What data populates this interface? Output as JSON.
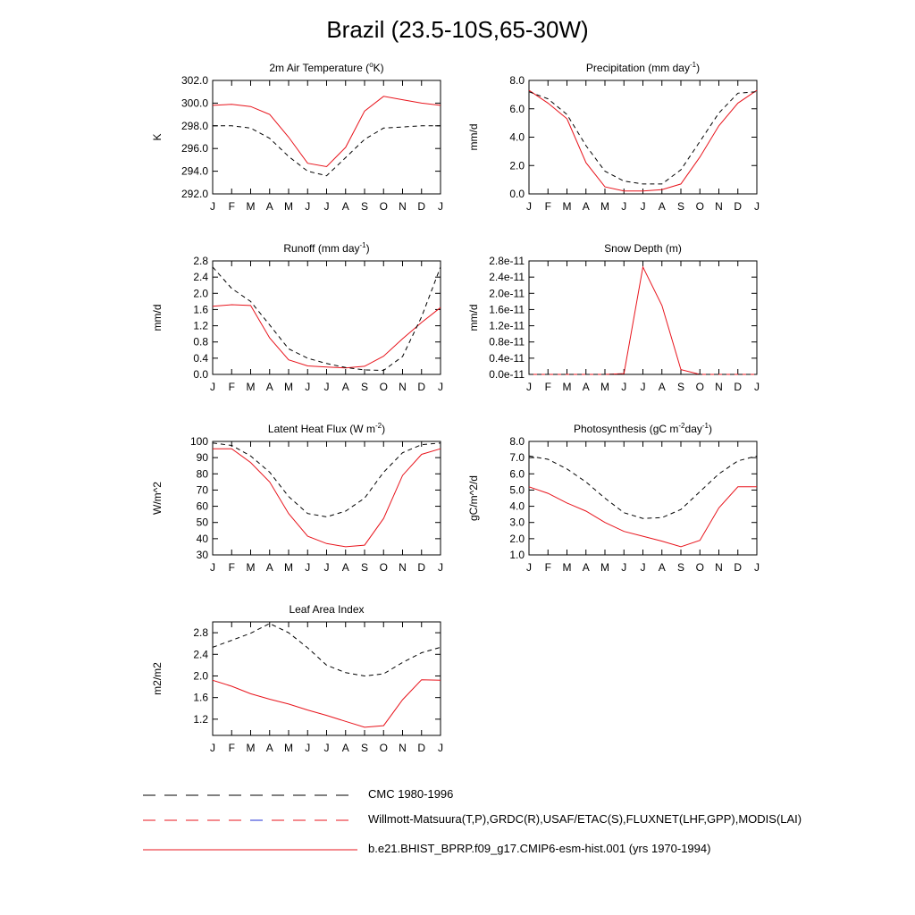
{
  "title": "Brazil (23.5-10S,65-30W)",
  "months": [
    "J",
    "F",
    "M",
    "A",
    "M",
    "J",
    "J",
    "A",
    "S",
    "O",
    "N",
    "D",
    "J"
  ],
  "colors": {
    "model": "#e8141c",
    "obs": "#000000",
    "obs_alt_accent": "#1f2fd6"
  },
  "chart_data": [
    {
      "id": "air-temp",
      "type": "line",
      "title_parts": [
        "2m Air Temperature (",
        "o",
        "K)"
      ],
      "ylabel": "K",
      "ylim": [
        292.0,
        302.0
      ],
      "yticks": [
        292.0,
        294.0,
        296.0,
        298.0,
        300.0,
        302.0
      ],
      "tick_labels": [
        "292.0",
        "294.0",
        "296.0",
        "298.0",
        "300.0",
        "302.0"
      ],
      "series": [
        {
          "name": "model",
          "values": [
            299.8,
            299.9,
            299.7,
            299.0,
            297.0,
            294.7,
            294.4,
            296.1,
            299.3,
            300.6,
            300.3,
            300.0,
            299.8
          ]
        },
        {
          "name": "obs",
          "values": [
            298.0,
            298.0,
            297.8,
            296.9,
            295.3,
            294.0,
            293.6,
            295.2,
            296.8,
            297.8,
            297.9,
            298.0,
            298.0
          ]
        }
      ]
    },
    {
      "id": "precip",
      "type": "line",
      "title_parts": [
        "Precipitation (mm day",
        "-1",
        ")"
      ],
      "ylabel": "mm/d",
      "ylim": [
        0.0,
        8.0
      ],
      "yticks": [
        0.0,
        2.0,
        4.0,
        6.0,
        8.0
      ],
      "tick_labels": [
        "0.0",
        "2.0",
        "4.0",
        "6.0",
        "8.0"
      ],
      "series": [
        {
          "name": "model",
          "values": [
            7.3,
            6.4,
            5.3,
            2.2,
            0.5,
            0.2,
            0.2,
            0.3,
            0.7,
            2.6,
            4.8,
            6.4,
            7.3
          ]
        },
        {
          "name": "obs",
          "values": [
            7.2,
            6.7,
            5.6,
            3.4,
            1.6,
            0.9,
            0.7,
            0.7,
            1.7,
            3.7,
            5.7,
            7.1,
            7.2
          ]
        }
      ]
    },
    {
      "id": "runoff",
      "type": "line",
      "title_parts": [
        "Runoff (mm day",
        "-1",
        ")"
      ],
      "ylabel": "mm/d",
      "ylim": [
        0.0,
        2.8
      ],
      "yticks": [
        0.0,
        0.4,
        0.8,
        1.2,
        1.6,
        2.0,
        2.4,
        2.8
      ],
      "tick_labels": [
        "0.0",
        "0.4",
        "0.8",
        "1.2",
        "1.6",
        "2.0",
        "2.4",
        "2.8"
      ],
      "series": [
        {
          "name": "model",
          "values": [
            1.68,
            1.72,
            1.7,
            0.9,
            0.36,
            0.21,
            0.18,
            0.16,
            0.2,
            0.45,
            0.88,
            1.28,
            1.65
          ]
        },
        {
          "name": "obs",
          "values": [
            2.65,
            2.12,
            1.8,
            1.22,
            0.63,
            0.4,
            0.27,
            0.17,
            0.11,
            0.1,
            0.44,
            1.42,
            2.65
          ]
        }
      ]
    },
    {
      "id": "snow-depth",
      "type": "line",
      "title_parts": [
        "Snow Depth (m)"
      ],
      "ylabel": "mm/d",
      "ylim": [
        0.0,
        2.8
      ],
      "yticks": [
        0.0,
        0.4,
        0.8,
        1.2,
        1.6,
        2.0,
        2.4,
        2.8
      ],
      "tick_labels": [
        "0.0e-11",
        "0.4e-11",
        "0.8e-11",
        "1.2e-11",
        "1.6e-11",
        "2.0e-11",
        "2.4e-11",
        "2.8e-11"
      ],
      "series": [
        {
          "name": "model",
          "values": [
            0.0,
            0.0,
            0.0,
            0.0,
            0.0,
            0.02,
            2.65,
            1.7,
            0.12,
            0.0,
            0.0,
            0.0,
            0.0
          ]
        },
        {
          "name": "obs",
          "values": [
            0.0,
            0.0,
            0.0,
            0.0,
            0.0,
            0.0,
            0.0,
            0.0,
            0.0,
            0.0,
            0.0,
            0.0,
            0.0
          ]
        }
      ]
    },
    {
      "id": "latent-heat",
      "type": "line",
      "title_parts": [
        "Latent Heat Flux (W m",
        "-2",
        ")"
      ],
      "ylabel": "W/m^2",
      "ylim": [
        30,
        100
      ],
      "yticks": [
        30,
        40,
        50,
        60,
        70,
        80,
        90,
        100
      ],
      "tick_labels": [
        "30",
        "40",
        "50",
        "60",
        "70",
        "80",
        "90",
        "100"
      ],
      "series": [
        {
          "name": "model",
          "values": [
            95.5,
            95.5,
            87.0,
            75.0,
            55.5,
            41.5,
            37.0,
            35.0,
            36.0,
            52.5,
            79.0,
            92.0,
            95.5
          ]
        },
        {
          "name": "obs",
          "values": [
            99.0,
            97.5,
            91.0,
            81.0,
            66.0,
            55.5,
            53.5,
            57.0,
            65.0,
            81.0,
            93.0,
            98.0,
            99.0
          ]
        }
      ]
    },
    {
      "id": "photosynthesis",
      "type": "line",
      "title_parts": [
        "Photosynthesis (gC m",
        "-2",
        "day",
        "-1",
        ")"
      ],
      "ylabel": "gC/m^2/d",
      "ylim": [
        1.0,
        8.0
      ],
      "yticks": [
        1.0,
        2.0,
        3.0,
        4.0,
        5.0,
        6.0,
        7.0,
        8.0
      ],
      "tick_labels": [
        "1.0",
        "2.0",
        "3.0",
        "4.0",
        "5.0",
        "6.0",
        "7.0",
        "8.0"
      ],
      "series": [
        {
          "name": "model",
          "values": [
            5.2,
            4.8,
            4.2,
            3.7,
            3.0,
            2.45,
            2.15,
            1.85,
            1.5,
            1.9,
            3.9,
            5.2,
            5.2
          ]
        },
        {
          "name": "obs",
          "values": [
            7.1,
            6.9,
            6.3,
            5.5,
            4.5,
            3.6,
            3.25,
            3.3,
            3.8,
            4.9,
            6.0,
            6.8,
            7.1
          ]
        }
      ]
    },
    {
      "id": "leaf-area-index",
      "type": "line",
      "title_parts": [
        "Leaf Area Index"
      ],
      "ylabel": "m2/m2",
      "ylim": [
        0.9,
        3.0
      ],
      "yticks": [
        1.2,
        1.6,
        2.0,
        2.4,
        2.8
      ],
      "tick_labels": [
        "1.2",
        "1.6",
        "2.0",
        "2.4",
        "2.8"
      ],
      "series": [
        {
          "name": "model",
          "values": [
            1.92,
            1.81,
            1.67,
            1.57,
            1.48,
            1.37,
            1.27,
            1.16,
            1.05,
            1.08,
            1.56,
            1.93,
            1.92
          ]
        },
        {
          "name": "obs",
          "values": [
            2.53,
            2.66,
            2.79,
            2.97,
            2.8,
            2.52,
            2.2,
            2.06,
            2.0,
            2.04,
            2.25,
            2.43,
            2.53
          ]
        }
      ]
    }
  ],
  "legend": [
    {
      "key": "cmc",
      "label": "CMC 1980-1996",
      "style": "dashed"
    },
    {
      "key": "obs",
      "label": "Willmott-Matsuura(T,P),GRDC(R),USAF/ETAC(S),FLUXNET(LHF,GPP),MODIS(LAI)",
      "style": "dashed-color"
    },
    {
      "key": "model",
      "label": "b.e21.BHIST_BPRP.f09_g17.CMIP6-esm-hist.001 (yrs 1970-1994)",
      "style": "solid"
    }
  ]
}
